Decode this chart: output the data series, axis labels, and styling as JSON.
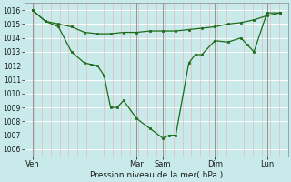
{
  "background_color": "#c8eaea",
  "grid_color_h": "#ffffff",
  "grid_color_v": "#e8b8b8",
  "line_color": "#1a6b1a",
  "marker_color": "#1a6b1a",
  "xlabel": "Pression niveau de la mer( hPa )",
  "ylim": [
    1005.5,
    1016.5
  ],
  "yticks": [
    1006,
    1007,
    1008,
    1009,
    1010,
    1011,
    1012,
    1013,
    1014,
    1015,
    1016
  ],
  "xtick_labels": [
    "Ven",
    "Mar",
    "Sam",
    "Dim",
    "Lun"
  ],
  "xtick_positions": [
    0,
    4,
    5,
    7,
    9
  ],
  "xlim": [
    -0.3,
    9.8
  ],
  "total_days": 10,
  "line1_x": [
    0,
    0.5,
    1.0,
    1.5,
    2.0,
    2.5,
    3.0,
    3.5,
    4.0,
    4.5,
    5.0,
    5.5,
    6.0,
    6.5,
    7.0,
    7.5,
    8.0,
    8.5,
    9.0,
    9.5
  ],
  "line1_y": [
    1016.0,
    1015.2,
    1015.0,
    1014.8,
    1014.4,
    1014.3,
    1014.3,
    1014.4,
    1014.4,
    1014.5,
    1014.5,
    1014.5,
    1014.6,
    1014.7,
    1014.8,
    1015.0,
    1015.1,
    1015.3,
    1015.6,
    1015.8
  ],
  "line2_x": [
    0,
    0.5,
    1.0,
    1.5,
    2.0,
    2.25,
    2.5,
    2.75,
    3.0,
    3.25,
    3.5,
    4.0,
    4.5,
    5.0,
    5.25,
    5.5,
    6.0,
    6.25,
    6.5,
    7.0,
    7.5,
    8.0,
    8.25,
    8.5,
    9.0,
    9.5
  ],
  "line2_y": [
    1016.0,
    1015.2,
    1014.8,
    1013.0,
    1012.2,
    1012.1,
    1012.0,
    1011.3,
    1009.0,
    1009.0,
    1009.5,
    1008.2,
    1007.5,
    1006.8,
    1007.0,
    1007.0,
    1012.2,
    1012.8,
    1012.8,
    1013.8,
    1013.7,
    1014.0,
    1013.5,
    1013.0,
    1015.8,
    1015.8
  ]
}
